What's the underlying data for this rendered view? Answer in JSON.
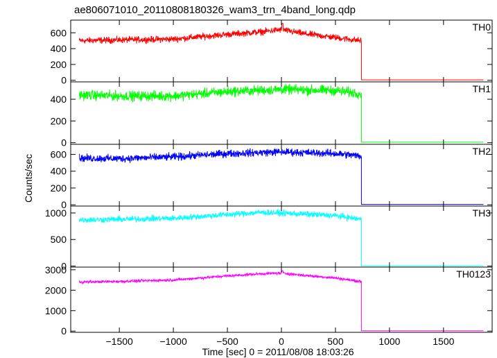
{
  "chart_data": {
    "type": "line",
    "title": "ae806071010_20110808180326_wam3_trn_4band_long.qdp",
    "xlabel": "Time [sec] 0 = 2011/08/08 18:03:26",
    "ylabel": "Counts/sec",
    "xlim": [
      -1950,
      1950
    ],
    "xticks": [
      -1500,
      -1000,
      -500,
      0,
      500,
      1000,
      1500
    ],
    "xtick_labels": [
      "−1500",
      "−1000",
      "−500",
      "0",
      "500",
      "1000",
      "1500"
    ],
    "step_time": 740,
    "x_start": -1870,
    "x_end": 1870,
    "panels": [
      {
        "name": "TH0",
        "color": "#ff0000",
        "ylim": [
          -20,
          760
        ],
        "yticks": [
          0,
          200,
          400,
          600
        ],
        "ytick_labels": [
          "0",
          "200",
          "400",
          "600"
        ],
        "x": [
          -1870,
          -1500,
          -1000,
          -500,
          -200,
          0,
          200,
          500,
          740
        ],
        "y": [
          500,
          510,
          520,
          580,
          610,
          640,
          590,
          540,
          500
        ],
        "noise": 25,
        "spike": {
          "x": 10,
          "y": 720
        },
        "after_value": 5
      },
      {
        "name": "TH1",
        "color": "#00ff00",
        "ylim": [
          -15,
          560
        ],
        "yticks": [
          0,
          200,
          400
        ],
        "ytick_labels": [
          "0",
          "200",
          "400"
        ],
        "x": [
          -1870,
          -1500,
          -1000,
          -500,
          0,
          500,
          740
        ],
        "y": [
          440,
          430,
          430,
          470,
          490,
          480,
          450
        ],
        "noise": 28,
        "after_value": 5
      },
      {
        "name": "TH2",
        "color": "#0000ff",
        "ylim": [
          -15,
          720
        ],
        "yticks": [
          0,
          200,
          400,
          600
        ],
        "ytick_labels": [
          "0",
          "200",
          "400",
          "600"
        ],
        "x": [
          -1870,
          -1500,
          -1000,
          -500,
          0,
          500,
          740
        ],
        "y": [
          555,
          550,
          570,
          610,
          630,
          610,
          580
        ],
        "noise": 28,
        "after_value": 5
      },
      {
        "name": "TH3",
        "color": "#00ffff",
        "ylim": [
          -20,
          1130
        ],
        "yticks": [
          0,
          500,
          1000
        ],
        "ytick_labels": [
          "0",
          "500",
          "1000"
        ],
        "x": [
          -1870,
          -1500,
          -1000,
          -500,
          -200,
          0,
          500,
          740
        ],
        "y": [
          870,
          880,
          900,
          970,
          1010,
          1000,
          950,
          880
        ],
        "noise": 35,
        "after_value": 5
      },
      {
        "name": "TH0123",
        "color": "#ff00ff",
        "ylim": [
          -60,
          3130
        ],
        "yticks": [
          0,
          1000,
          2000,
          3000
        ],
        "ytick_labels": [
          "0",
          "1000",
          "2000",
          "3000"
        ],
        "x": [
          -1870,
          -1500,
          -1000,
          -500,
          -200,
          0,
          200,
          500,
          740
        ],
        "y": [
          2400,
          2430,
          2500,
          2700,
          2800,
          2840,
          2730,
          2600,
          2420
        ],
        "noise": 40,
        "spike": {
          "x": 10,
          "y": 2950
        },
        "after_value": 15
      }
    ]
  }
}
